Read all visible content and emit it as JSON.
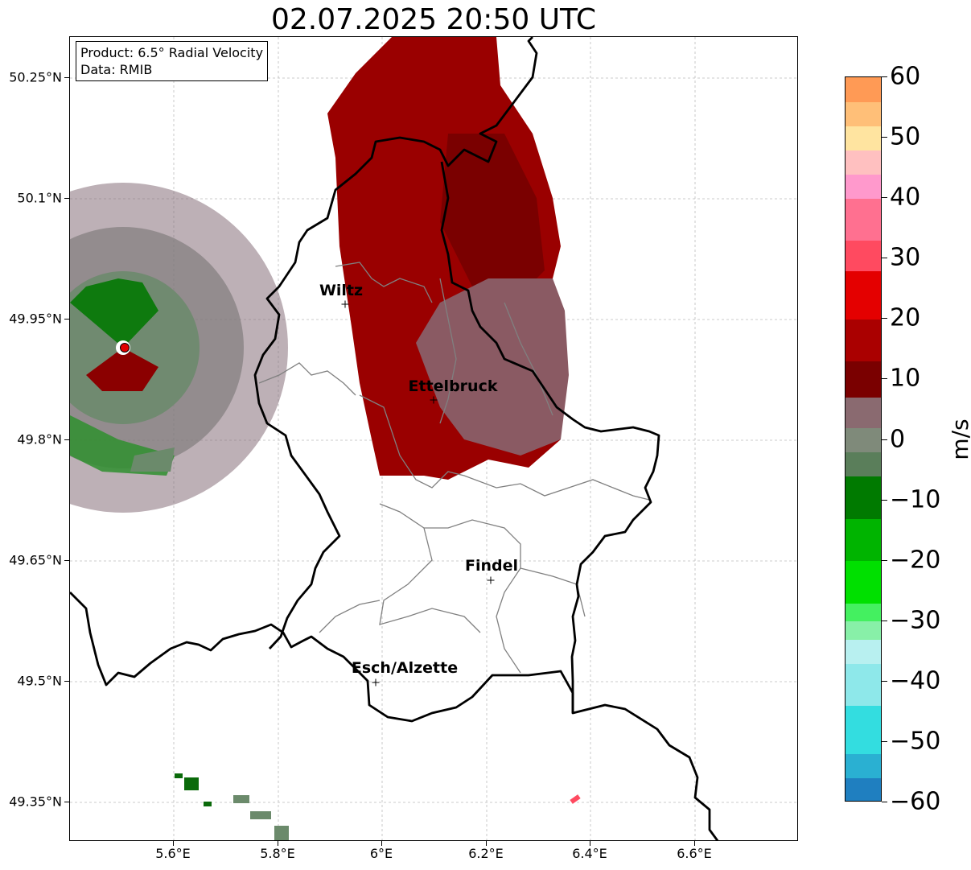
{
  "title": "02.07.2025 20:50 UTC",
  "info": {
    "product": "Product: 6.5° Radial Velocity",
    "data_source": "Data: RMIB"
  },
  "lat_labels": [
    "50.25°N",
    "50.1°N",
    "49.95°N",
    "49.8°N",
    "49.65°N",
    "49.5°N",
    "49.35°N"
  ],
  "lon_labels": [
    "5.6°E",
    "5.8°E",
    "6°E",
    "6.2°E",
    "6.4°E",
    "6.6°E"
  ],
  "cities": [
    {
      "name": "Wiltz"
    },
    {
      "name": "Ettelbruck"
    },
    {
      "name": "Findel"
    },
    {
      "name": "Esch/Alzette"
    }
  ],
  "colorbar": {
    "unit": "m/s",
    "tick_labels": [
      "60",
      "50",
      "40",
      "30",
      "20",
      "10",
      "0",
      "−10",
      "−20",
      "−30",
      "−40",
      "−50",
      "−60"
    ],
    "min": -60,
    "max": 60,
    "colors": [
      {
        "from": -60,
        "to": -56,
        "color": "#1f7fc0"
      },
      {
        "from": -56,
        "to": -52,
        "color": "#2ab0d2"
      },
      {
        "from": -52,
        "to": -44,
        "color": "#33dde0"
      },
      {
        "from": -44,
        "to": -37,
        "color": "#8ee8ea"
      },
      {
        "from": -37,
        "to": -33,
        "color": "#b8f0f0"
      },
      {
        "from": -33,
        "to": -30,
        "color": "#88f0a8"
      },
      {
        "from": -30,
        "to": -27,
        "color": "#44f060"
      },
      {
        "from": -27,
        "to": -20,
        "color": "#00e000"
      },
      {
        "from": -20,
        "to": -13,
        "color": "#00b400"
      },
      {
        "from": -13,
        "to": -6,
        "color": "#007a00"
      },
      {
        "from": -6,
        "to": -2,
        "color": "#5a7e5a"
      },
      {
        "from": -2,
        "to": 2,
        "color": "#7f8a7a"
      },
      {
        "from": 2,
        "to": 7,
        "color": "#8a6a70"
      },
      {
        "from": 7,
        "to": 13,
        "color": "#7a0000"
      },
      {
        "from": 13,
        "to": 20,
        "color": "#aa0000"
      },
      {
        "from": 20,
        "to": 28,
        "color": "#e40000"
      },
      {
        "from": 28,
        "to": 33,
        "color": "#ff4a60"
      },
      {
        "from": 33,
        "to": 40,
        "color": "#ff7090"
      },
      {
        "from": 40,
        "to": 44,
        "color": "#ff99cc"
      },
      {
        "from": 44,
        "to": 48,
        "color": "#ffc0c0"
      },
      {
        "from": 48,
        "to": 52,
        "color": "#ffe4a0"
      },
      {
        "from": 52,
        "to": 56,
        "color": "#ffbf78"
      },
      {
        "from": 56,
        "to": 60,
        "color": "#ff9a55"
      }
    ]
  },
  "map_colors": {
    "outbound_dark": "#8b0000",
    "outbound_mid": "#a50000",
    "near_zero_pos": "#8a5a63",
    "near_zero_neg": "#6b8a6b",
    "inbound": "#007000",
    "border": "#000000",
    "canton": "#808080"
  }
}
